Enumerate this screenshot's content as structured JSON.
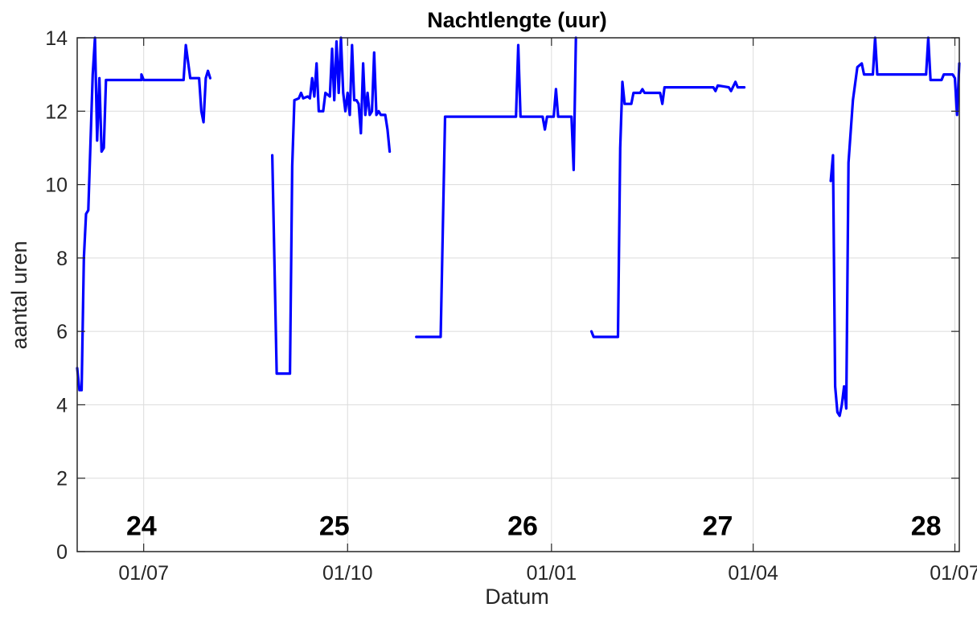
{
  "chart_data": {
    "type": "line",
    "title": "Nachtlengte (uur)",
    "xlabel": "Datum",
    "ylabel": "aantal uren",
    "xlim": [
      "2023-06-01",
      "2024-07-03"
    ],
    "ylim": [
      0,
      14
    ],
    "yticks": [
      0,
      2,
      4,
      6,
      8,
      10,
      12,
      14
    ],
    "xticks": [
      {
        "date": "2023-07-01",
        "label": "01/07"
      },
      {
        "date": "2023-10-01",
        "label": "01/10"
      },
      {
        "date": "2024-01-01",
        "label": "01/01"
      },
      {
        "date": "2024-04-01",
        "label": "01/04"
      },
      {
        "date": "2024-07-01",
        "label": "01/07"
      }
    ],
    "grid": true,
    "line_color": "#0000ff",
    "annotations": [
      {
        "text": "24",
        "x": "2023-06-30",
        "y": 0.45
      },
      {
        "text": "25",
        "x": "2023-09-25",
        "y": 0.45
      },
      {
        "text": "26",
        "x": "2023-12-19",
        "y": 0.45
      },
      {
        "text": "27",
        "x": "2024-03-16",
        "y": 0.45
      },
      {
        "text": "28",
        "x": "2024-06-18",
        "y": 0.45
      }
    ],
    "series": [
      {
        "points": [
          [
            "2023-06-01",
            5.0
          ],
          [
            "2023-06-02",
            4.4
          ],
          [
            "2023-06-03",
            4.4
          ],
          [
            "2023-06-04",
            8.0
          ],
          [
            "2023-06-05",
            9.2
          ],
          [
            "2023-06-06",
            9.3
          ],
          [
            "2023-06-08",
            13.0
          ],
          [
            "2023-06-09",
            14.0
          ],
          [
            "2023-06-10",
            11.2
          ],
          [
            "2023-06-11",
            12.9
          ],
          [
            "2023-06-12",
            10.9
          ],
          [
            "2023-06-13",
            11.0
          ],
          [
            "2023-06-14",
            12.85
          ],
          [
            "2023-06-30",
            12.85
          ],
          [
            "2023-06-30",
            13.0
          ],
          [
            "2023-07-01",
            12.85
          ],
          [
            "2023-07-19",
            12.85
          ],
          [
            "2023-07-20",
            13.8
          ],
          [
            "2023-07-22",
            12.9
          ],
          [
            "2023-07-26",
            12.9
          ],
          [
            "2023-07-27",
            12.0
          ],
          [
            "2023-07-28",
            11.7
          ],
          [
            "2023-07-29",
            12.9
          ],
          [
            "2023-07-30",
            13.1
          ],
          [
            "2023-07-31",
            12.9
          ],
          null,
          [
            "2023-08-28",
            10.8
          ],
          [
            "2023-08-30",
            4.85
          ],
          [
            "2023-09-05",
            4.85
          ],
          [
            "2023-09-06",
            10.5
          ],
          [
            "2023-09-07",
            12.3
          ],
          [
            "2023-09-09",
            12.35
          ],
          [
            "2023-09-10",
            12.5
          ],
          [
            "2023-09-11",
            12.35
          ],
          [
            "2023-09-13",
            12.4
          ],
          [
            "2023-09-14",
            12.35
          ],
          [
            "2023-09-15",
            12.9
          ],
          [
            "2023-09-16",
            12.4
          ],
          [
            "2023-09-17",
            13.3
          ],
          [
            "2023-09-18",
            12.0
          ],
          [
            "2023-09-20",
            12.0
          ],
          [
            "2023-09-21",
            12.5
          ],
          [
            "2023-09-23",
            12.4
          ],
          [
            "2023-09-24",
            13.7
          ],
          [
            "2023-09-25",
            12.3
          ],
          [
            "2023-09-26",
            13.9
          ],
          [
            "2023-09-27",
            12.5
          ],
          [
            "2023-09-28",
            14.0
          ],
          [
            "2023-09-29",
            12.5
          ],
          [
            "2023-09-30",
            12.0
          ],
          [
            "2023-10-01",
            12.5
          ],
          [
            "2023-10-02",
            11.9
          ],
          [
            "2023-10-03",
            13.8
          ],
          [
            "2023-10-04",
            12.3
          ],
          [
            "2023-10-05",
            12.3
          ],
          [
            "2023-10-06",
            12.2
          ],
          [
            "2023-10-07",
            11.4
          ],
          [
            "2023-10-08",
            13.3
          ],
          [
            "2023-10-09",
            11.9
          ],
          [
            "2023-10-10",
            12.5
          ],
          [
            "2023-10-11",
            11.9
          ],
          [
            "2023-10-12",
            12.0
          ],
          [
            "2023-10-13",
            13.6
          ],
          [
            "2023-10-14",
            11.9
          ],
          [
            "2023-10-15",
            12.0
          ],
          [
            "2023-10-16",
            11.9
          ],
          [
            "2023-10-18",
            11.9
          ],
          [
            "2023-10-19",
            11.5
          ],
          [
            "2023-10-20",
            10.9
          ],
          null,
          [
            "2023-11-01",
            5.85
          ],
          [
            "2023-11-12",
            5.85
          ],
          [
            "2023-11-14",
            11.85
          ],
          [
            "2023-12-16",
            11.85
          ],
          [
            "2023-12-17",
            13.8
          ],
          [
            "2023-12-18",
            11.85
          ],
          [
            "2023-12-28",
            11.85
          ],
          [
            "2023-12-29",
            11.5
          ],
          [
            "2023-12-30",
            11.85
          ],
          [
            "2024-01-01",
            11.85
          ],
          [
            "2024-01-02",
            11.85
          ],
          [
            "2024-01-03",
            12.6
          ],
          [
            "2024-01-04",
            11.85
          ],
          [
            "2024-01-10",
            11.85
          ],
          [
            "2024-01-11",
            10.4
          ],
          [
            "2024-01-12",
            14.0
          ],
          null,
          [
            "2024-01-19",
            6.0
          ],
          [
            "2024-01-20",
            5.85
          ],
          [
            "2024-01-31",
            5.85
          ],
          [
            "2024-02-01",
            11.0
          ],
          [
            "2024-02-02",
            12.8
          ],
          [
            "2024-02-03",
            12.2
          ],
          [
            "2024-02-06",
            12.2
          ],
          [
            "2024-02-07",
            12.5
          ],
          [
            "2024-02-10",
            12.5
          ],
          [
            "2024-02-11",
            12.6
          ],
          [
            "2024-02-12",
            12.5
          ],
          [
            "2024-02-19",
            12.5
          ],
          [
            "2024-02-20",
            12.2
          ],
          [
            "2024-02-21",
            12.65
          ],
          [
            "2024-03-14",
            12.65
          ],
          [
            "2024-03-15",
            12.55
          ],
          [
            "2024-03-16",
            12.7
          ],
          [
            "2024-03-21",
            12.65
          ],
          [
            "2024-03-22",
            12.55
          ],
          [
            "2024-03-24",
            12.8
          ],
          [
            "2024-03-25",
            12.65
          ],
          [
            "2024-03-28",
            12.65
          ],
          null,
          [
            "2024-05-06",
            10.1
          ],
          [
            "2024-05-07",
            10.8
          ],
          [
            "2024-05-08",
            4.5
          ],
          [
            "2024-05-09",
            3.8
          ],
          [
            "2024-05-10",
            3.7
          ],
          [
            "2024-05-11",
            4.0
          ],
          [
            "2024-05-12",
            4.5
          ],
          [
            "2024-05-13",
            3.9
          ],
          [
            "2024-05-14",
            10.6
          ],
          [
            "2024-05-16",
            12.3
          ],
          [
            "2024-05-18",
            13.2
          ],
          [
            "2024-05-20",
            13.3
          ],
          [
            "2024-05-21",
            13.0
          ],
          [
            "2024-05-25",
            13.0
          ],
          [
            "2024-05-26",
            14.0
          ],
          [
            "2024-05-27",
            13.0
          ],
          [
            "2024-06-18",
            13.0
          ],
          [
            "2024-06-19",
            14.0
          ],
          [
            "2024-06-20",
            12.85
          ],
          [
            "2024-06-25",
            12.85
          ],
          [
            "2024-06-26",
            13.0
          ],
          [
            "2024-06-30",
            13.0
          ],
          [
            "2024-07-01",
            12.9
          ],
          [
            "2024-07-02",
            11.9
          ],
          [
            "2024-07-03",
            13.3
          ]
        ]
      }
    ]
  }
}
